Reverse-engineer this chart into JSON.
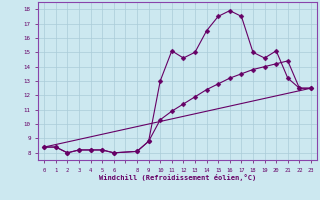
{
  "xlabel": "Windchill (Refroidissement éolien,°C)",
  "background_color": "#cce8f0",
  "grid_color": "#aaccd8",
  "line_color": "#660066",
  "spine_color": "#8844aa",
  "x_ticks_labels": [
    "0",
    "1",
    "2",
    "3",
    "4",
    "5",
    "6",
    "",
    "8",
    "9",
    "10",
    "11",
    "12",
    "13",
    "14",
    "15",
    "16",
    "17",
    "18",
    "19",
    "20",
    "21",
    "22",
    "23"
  ],
  "x_ticks_pos": [
    0,
    1,
    2,
    3,
    4,
    5,
    6,
    7,
    8,
    9,
    10,
    11,
    12,
    13,
    14,
    15,
    16,
    17,
    18,
    19,
    20,
    21,
    22,
    23
  ],
  "xlim": [
    -0.5,
    23.5
  ],
  "ylim": [
    7.5,
    18.5
  ],
  "yticks": [
    8,
    9,
    10,
    11,
    12,
    13,
    14,
    15,
    16,
    17,
    18
  ],
  "series1_x": [
    0,
    1,
    2,
    3,
    4,
    5,
    6,
    8,
    9,
    10,
    11,
    12,
    13,
    14,
    15,
    16,
    17,
    18,
    19,
    20,
    21,
    22,
    23
  ],
  "series1_y": [
    8.4,
    8.4,
    8.0,
    8.2,
    8.2,
    8.2,
    8.0,
    8.1,
    8.8,
    13.0,
    15.1,
    14.6,
    15.0,
    16.5,
    17.5,
    17.9,
    17.5,
    15.0,
    14.6,
    15.1,
    13.2,
    12.5,
    12.5
  ],
  "series2_x": [
    0,
    1,
    2,
    3,
    4,
    5,
    6,
    8,
    9,
    10,
    11,
    12,
    13,
    14,
    15,
    16,
    17,
    18,
    19,
    20,
    21,
    22,
    23
  ],
  "series2_y": [
    8.4,
    8.4,
    8.0,
    8.2,
    8.2,
    8.2,
    8.0,
    8.1,
    8.8,
    10.3,
    10.9,
    11.4,
    11.9,
    12.4,
    12.8,
    13.2,
    13.5,
    13.8,
    14.0,
    14.2,
    14.4,
    12.5,
    12.5
  ],
  "series3_x": [
    0,
    23
  ],
  "series3_y": [
    8.4,
    12.5
  ],
  "markersize": 2.5,
  "linewidth": 0.8
}
